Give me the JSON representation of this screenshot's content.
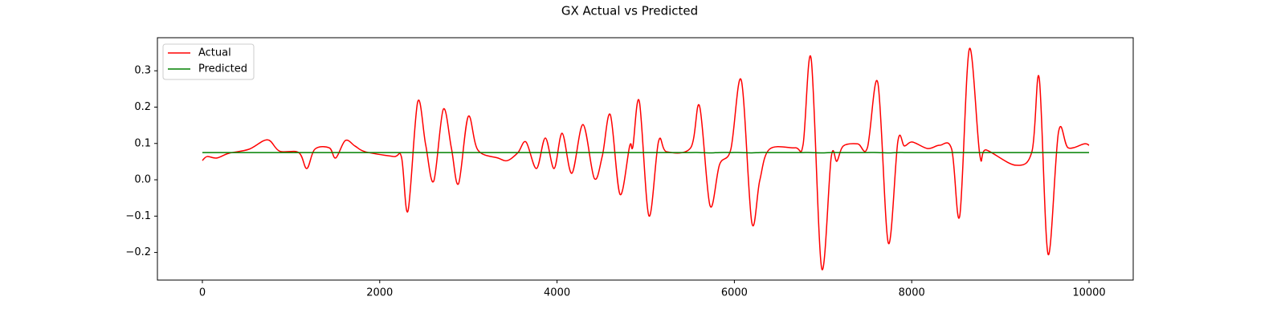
{
  "chart_data": {
    "type": "line",
    "title": "GX Actual vs Predicted",
    "x": [
      0,
      54,
      163,
      299,
      525,
      734,
      870,
      1087,
      1178,
      1268,
      1431,
      1504,
      1612,
      1721,
      1839,
      2156,
      2246,
      2319,
      2428,
      2518,
      2609,
      2717,
      2808,
      2889,
      2998,
      3107,
      3333,
      3442,
      3560,
      3650,
      3768,
      3868,
      3967,
      4058,
      4167,
      4293,
      4420,
      4511,
      4601,
      4710,
      4819,
      4855,
      4928,
      5036,
      5145,
      5236,
      5507,
      5607,
      5725,
      5833,
      5960,
      6078,
      6196,
      6286,
      6395,
      6685,
      6775,
      6866,
      6984,
      7092,
      7156,
      7228,
      7391,
      7500,
      7618,
      7736,
      7844,
      7917,
      8007,
      8179,
      8315,
      8451,
      8542,
      8650,
      8768,
      8841,
      9176,
      9357,
      9438,
      9538,
      9656,
      9764,
      9946,
      10000
    ],
    "series": [
      {
        "name": "Actual",
        "color": "#ff0000",
        "values": [
          0.053,
          0.064,
          0.06,
          0.073,
          0.084,
          0.11,
          0.079,
          0.075,
          0.031,
          0.084,
          0.088,
          0.06,
          0.108,
          0.093,
          0.077,
          0.064,
          0.062,
          -0.086,
          0.214,
          0.097,
          -0.004,
          0.194,
          0.088,
          -0.011,
          0.174,
          0.082,
          0.06,
          0.053,
          0.075,
          0.104,
          0.031,
          0.115,
          0.031,
          0.128,
          0.018,
          0.152,
          0.004,
          0.066,
          0.179,
          -0.04,
          0.093,
          0.091,
          0.216,
          -0.099,
          0.106,
          0.077,
          0.088,
          0.203,
          -0.071,
          0.042,
          0.084,
          0.274,
          -0.117,
          -0.002,
          0.084,
          0.088,
          0.097,
          0.333,
          -0.243,
          0.062,
          0.051,
          0.093,
          0.099,
          0.088,
          0.267,
          -0.174,
          0.106,
          0.093,
          0.104,
          0.086,
          0.095,
          0.084,
          -0.099,
          0.36,
          0.068,
          0.082,
          0.04,
          0.079,
          0.28,
          -0.205,
          0.132,
          0.088,
          0.099,
          0.095
        ]
      },
      {
        "name": "Predicted",
        "color": "#008000",
        "values": [
          0.075,
          0.075,
          0.075,
          0.075,
          0.075,
          0.075,
          0.075,
          0.075,
          0.075,
          0.075,
          0.075,
          0.075,
          0.075,
          0.075,
          0.075,
          0.075,
          0.075,
          0.075,
          0.075,
          0.075,
          0.075,
          0.075,
          0.075,
          0.075,
          0.075,
          0.075,
          0.075,
          0.075,
          0.075,
          0.075,
          0.075,
          0.075,
          0.075,
          0.075,
          0.075,
          0.075,
          0.075,
          0.075,
          0.075,
          0.075,
          0.075,
          0.075,
          0.075,
          0.075,
          0.075,
          0.075,
          0.075,
          0.075,
          0.074,
          0.075,
          0.075,
          0.075,
          0.074,
          0.075,
          0.075,
          0.075,
          0.075,
          0.075,
          0.074,
          0.075,
          0.075,
          0.075,
          0.075,
          0.075,
          0.075,
          0.074,
          0.075,
          0.075,
          0.075,
          0.075,
          0.075,
          0.075,
          0.075,
          0.075,
          0.075,
          0.075,
          0.075,
          0.075,
          0.075,
          0.075,
          0.075,
          0.075,
          0.075,
          0.075
        ]
      }
    ],
    "xlim": [
      -507,
      10498
    ],
    "ylim": [
      -0.276,
      0.391
    ],
    "xticks": [
      0,
      2000,
      4000,
      6000,
      8000,
      10000
    ],
    "yticks": [
      {
        "value": -0.2,
        "label": "−0.2"
      },
      {
        "value": -0.1,
        "label": "−0.1"
      },
      {
        "value": 0,
        "label": "0.0"
      },
      0.1,
      0.2,
      0.3
    ],
    "grid": false,
    "legend": "upper-left"
  }
}
